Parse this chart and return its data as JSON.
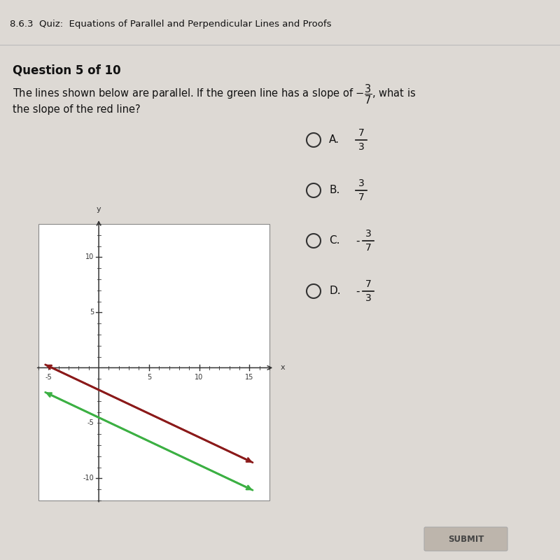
{
  "header_text": "8.6.3  Quiz:  Equations of Parallel and Perpendicular Lines and Proofs",
  "header_bg": "#4a9aaa",
  "body_bg": "#ddd9d4",
  "question_label": "Question 5 of 10",
  "plot_bg": "#ffffff",
  "xlim_min": -6,
  "xlim_max": 17,
  "ylim_min": -12,
  "ylim_max": 13,
  "xticks_major": [
    5,
    10,
    15
  ],
  "yticks_major": [
    -10,
    5,
    10
  ],
  "x_neg_label": "-5",
  "y_neg5_label": "-5",
  "green_color": "#3cb043",
  "red_color": "#8b1a1a",
  "red_x1": -5.5,
  "red_y1": 0.36,
  "red_x2": 15.5,
  "red_y2": -8.64,
  "green_x1": -5.5,
  "green_y1": -2.14,
  "green_x2": 15.5,
  "green_y2": -11.14,
  "choice_signs": [
    "",
    "",
    "-",
    "-"
  ],
  "choice_nums": [
    "7",
    "3",
    "3",
    "7"
  ],
  "choice_dens": [
    "3",
    "7",
    "7",
    "3"
  ],
  "choice_letters": [
    "A.",
    "B.",
    "C.",
    "D."
  ],
  "submit_color": "#bdb5ac",
  "submit_text": "SUBMIT"
}
